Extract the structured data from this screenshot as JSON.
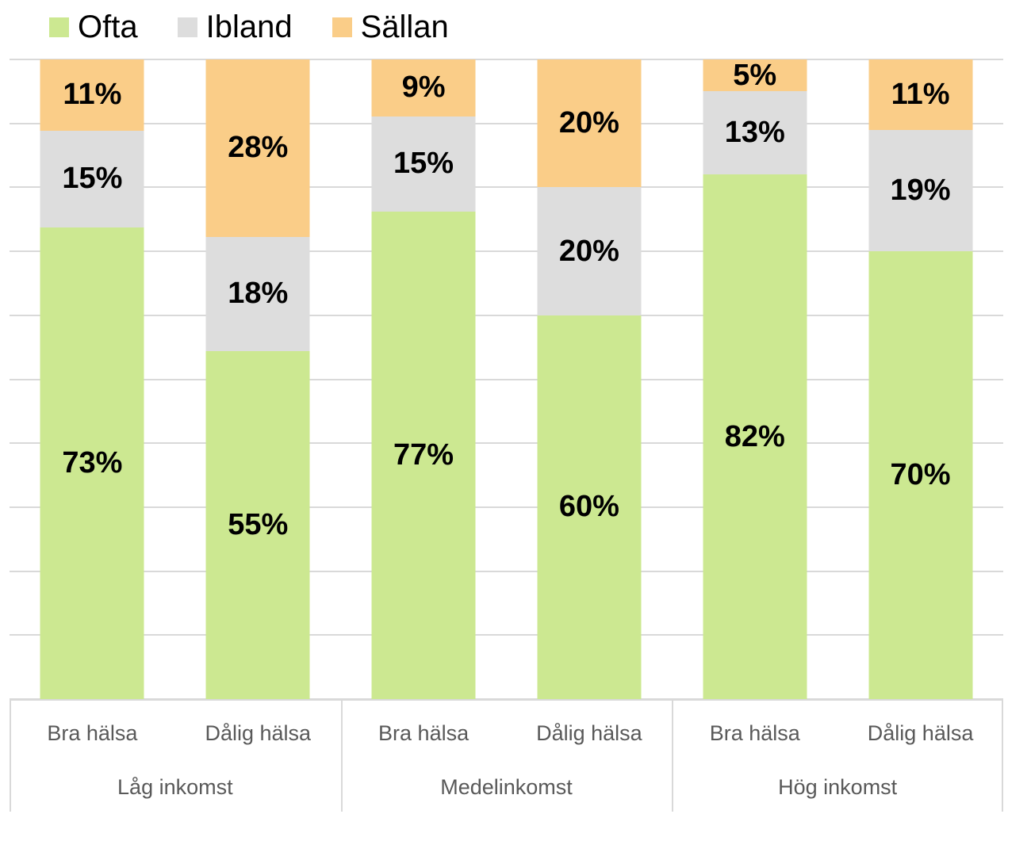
{
  "legend": {
    "items": [
      {
        "label": "Ofta",
        "color": "#CCE891"
      },
      {
        "label": "Ibland",
        "color": "#DDDDDD"
      },
      {
        "label": "Sällan",
        "color": "#FACD88"
      }
    ]
  },
  "chart_data": {
    "type": "bar",
    "stacked": true,
    "percent_stacked": true,
    "title": "",
    "categories": [
      "Bra hälsa",
      "Dålig hälsa",
      "Bra hälsa",
      "Dålig hälsa",
      "Bra hälsa",
      "Dålig hälsa"
    ],
    "group_labels": [
      "Låg inkomst",
      "Medelinkomst",
      "Hög inkomst"
    ],
    "series": [
      {
        "name": "Ofta",
        "color": "#CCE891",
        "values": [
          73,
          55,
          77,
          60,
          82,
          70
        ]
      },
      {
        "name": "Ibland",
        "color": "#DDDDDD",
        "values": [
          15,
          18,
          15,
          20,
          13,
          19
        ]
      },
      {
        "name": "Sällan",
        "color": "#FACD88",
        "values": [
          11,
          28,
          9,
          20,
          5,
          11
        ]
      }
    ],
    "value_suffix": "%",
    "ylim": [
      0,
      100
    ],
    "grid": true,
    "gridline_interval_percent": 10,
    "gridline_color": "#D9D9D9",
    "legend_position": "top",
    "axis_text_color": "#595959",
    "data_label_color": "#000000"
  }
}
